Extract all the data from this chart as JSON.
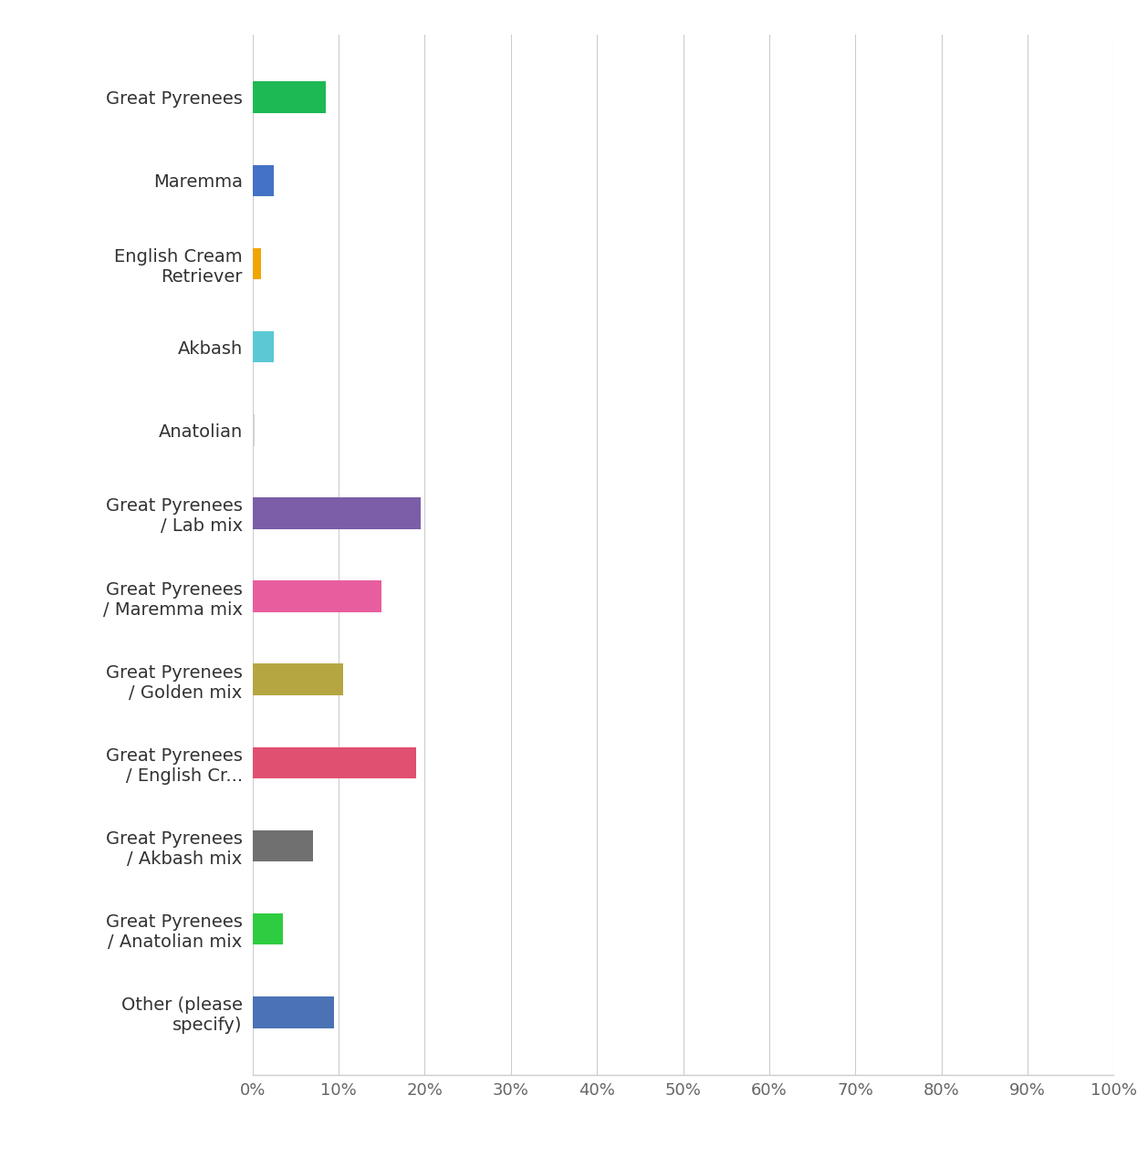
{
  "categories": [
    "Great Pyrenees",
    "Maremma",
    "English Cream\nRetriever",
    "Akbash",
    "Anatolian",
    "Great Pyrenees\n/ Lab mix",
    "Great Pyrenees\n/ Maremma mix",
    "Great Pyrenees\n/ Golden mix",
    "Great Pyrenees\n/ English Cr...",
    "Great Pyrenees\n/ Akbash mix",
    "Great Pyrenees\n/ Anatolian mix",
    "Other (please\nspecify)"
  ],
  "values": [
    8.5,
    2.5,
    1.0,
    2.5,
    0.2,
    19.5,
    15.0,
    10.5,
    19.0,
    7.0,
    3.5,
    9.5
  ],
  "colors": [
    "#1db954",
    "#4472c4",
    "#f0a500",
    "#5bc8d4",
    "#d0d0d0",
    "#7b5ea7",
    "#e85d9e",
    "#b5a642",
    "#e05070",
    "#707070",
    "#2ecc40",
    "#4a72b5"
  ],
  "xlim": [
    0,
    100
  ],
  "xticks": [
    0,
    10,
    20,
    30,
    40,
    50,
    60,
    70,
    80,
    90,
    100
  ],
  "xtick_labels": [
    "0%",
    "10%",
    "20%",
    "30%",
    "40%",
    "50%",
    "60%",
    "70%",
    "80%",
    "90%",
    "100%"
  ],
  "background_color": "#ffffff",
  "grid_color": "#cccccc",
  "label_fontsize": 14,
  "tick_fontsize": 13,
  "bar_height": 0.38,
  "figsize": [
    12.58,
    12.8
  ],
  "dpi": 100
}
